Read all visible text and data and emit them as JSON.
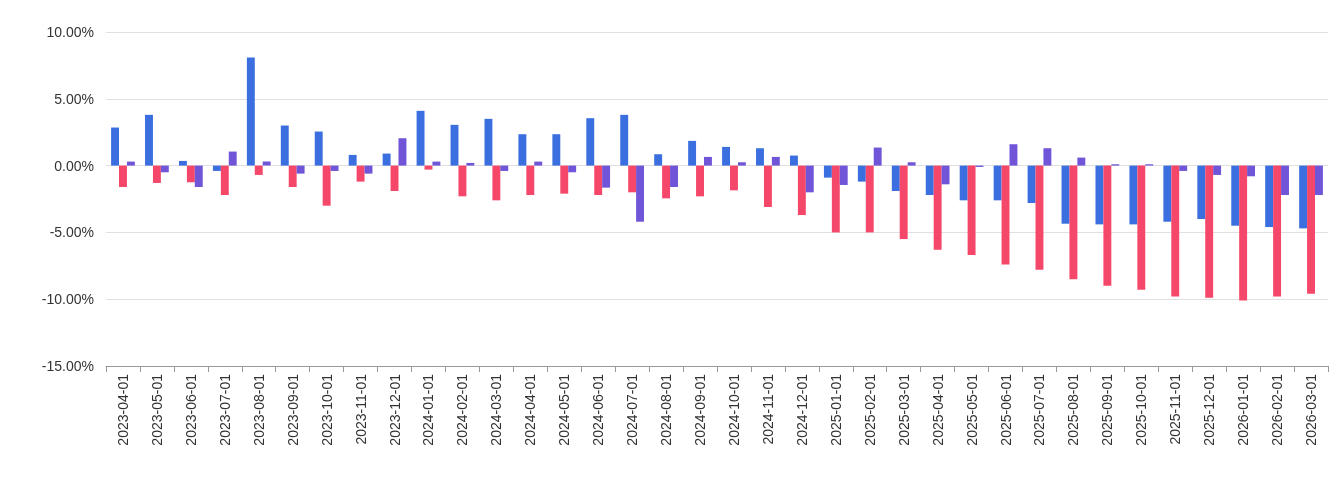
{
  "chart_data": {
    "type": "bar",
    "categories": [
      "2023-04-01",
      "2023-05-01",
      "2023-06-01",
      "2023-07-01",
      "2023-08-01",
      "2023-09-01",
      "2023-10-01",
      "2023-11-01",
      "2023-12-01",
      "2024-01-01",
      "2024-02-01",
      "2024-03-01",
      "2024-04-01",
      "2024-05-01",
      "2024-06-01",
      "2024-07-01",
      "2024-08-01",
      "2024-09-01",
      "2024-10-01",
      "2024-11-01",
      "2024-12-01",
      "2025-01-01",
      "2025-02-01",
      "2025-03-01",
      "2025-04-01",
      "2025-05-01",
      "2025-06-01",
      "2025-07-01",
      "2025-08-01",
      "2025-09-01",
      "2025-10-01",
      "2025-11-01",
      "2025-12-01",
      "2026-01-01",
      "2026-02-01",
      "2026-03-01"
    ],
    "series": [
      {
        "color": "#3b6fe0",
        "values": [
          2.85,
          3.8,
          0.35,
          -0.4,
          8.1,
          3.0,
          2.55,
          0.8,
          0.9,
          4.1,
          3.05,
          3.5,
          2.35,
          2.35,
          3.55,
          3.8,
          0.85,
          1.85,
          1.4,
          1.3,
          0.75,
          -0.9,
          -1.2,
          -1.9,
          -2.2,
          -2.6,
          -2.6,
          -2.8,
          -4.35,
          -4.4,
          -4.4,
          -4.2,
          -4.0,
          -4.5,
          -4.6,
          -4.7
        ]
      },
      {
        "color": "#f5476a",
        "values": [
          -1.6,
          -1.3,
          -1.25,
          -2.2,
          -0.7,
          -1.6,
          -3.0,
          -1.2,
          -1.9,
          -0.3,
          -2.3,
          -2.6,
          -2.2,
          -2.1,
          -2.2,
          -2.0,
          -2.45,
          -2.3,
          -1.85,
          -3.1,
          -3.7,
          -5.0,
          -5.0,
          -5.5,
          -6.3,
          -6.7,
          -7.4,
          -7.8,
          -8.5,
          -9.0,
          -9.3,
          -9.8,
          -9.9,
          -10.1,
          -9.8,
          -9.6
        ]
      },
      {
        "color": "#7055d8",
        "values": [
          0.3,
          -0.5,
          -1.6,
          1.05,
          0.3,
          -0.6,
          -0.4,
          -0.6,
          2.05,
          0.3,
          0.2,
          -0.4,
          0.3,
          -0.5,
          -1.65,
          -4.2,
          -1.6,
          0.65,
          0.25,
          0.65,
          -2.0,
          -1.45,
          1.35,
          0.25,
          -1.4,
          -0.1,
          1.6,
          1.3,
          0.6,
          0.1,
          0.1,
          -0.4,
          -0.7,
          -0.8,
          -2.2,
          -2.2
        ]
      }
    ],
    "ylim": [
      -15,
      10
    ],
    "yticks": [
      {
        "value": -15,
        "label": "-15.00%"
      },
      {
        "value": -10,
        "label": "-10.00%"
      },
      {
        "value": -5,
        "label": "-5.00%"
      },
      {
        "value": 0,
        "label": "0.00%"
      },
      {
        "value": 5,
        "label": "5.00%"
      },
      {
        "value": 10,
        "label": "10.00%"
      }
    ],
    "grid": "y"
  }
}
